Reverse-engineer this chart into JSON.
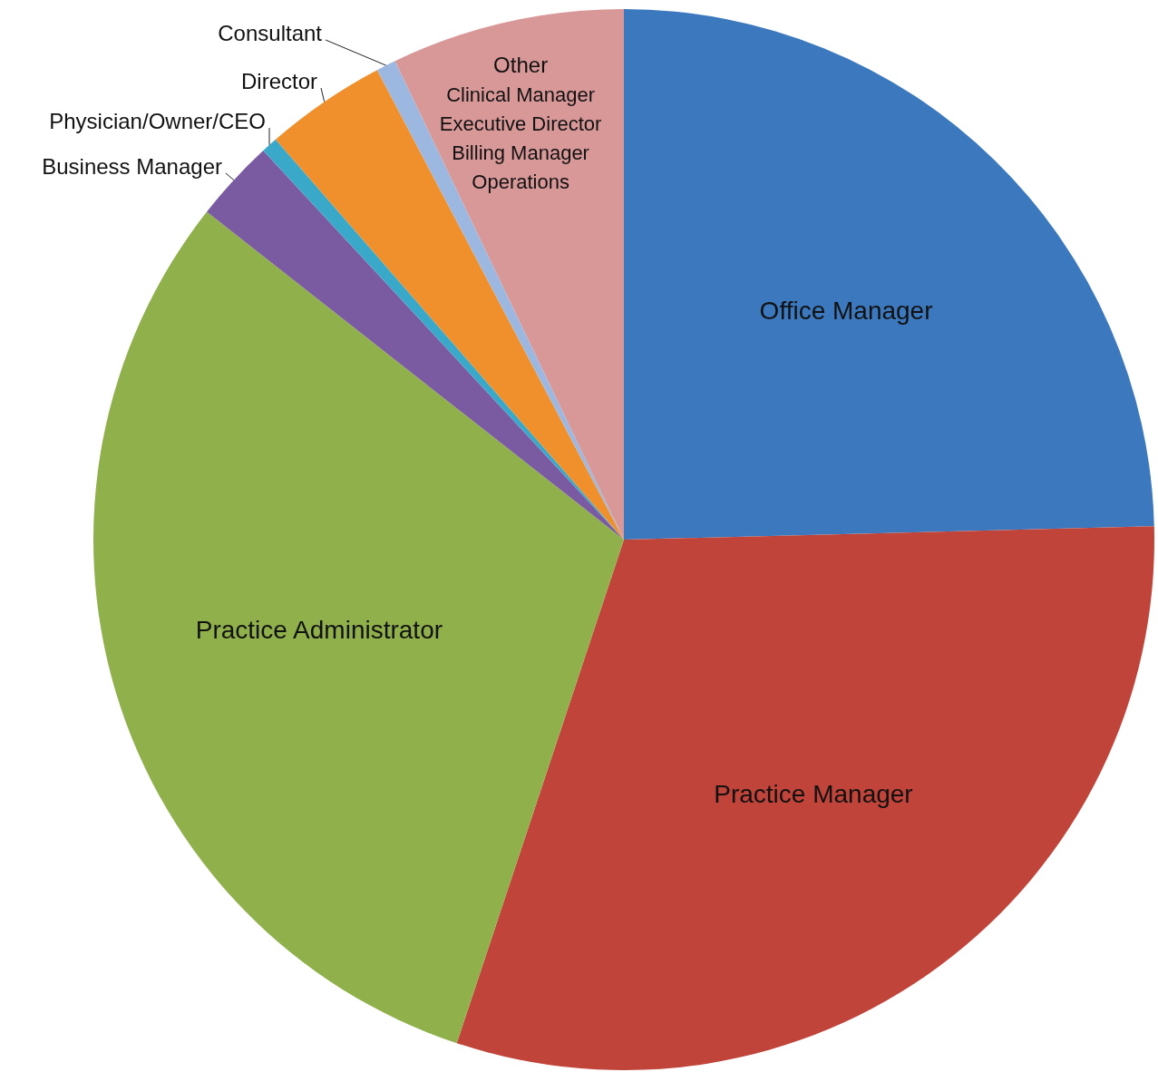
{
  "chart_data": {
    "type": "pie",
    "categories": [
      "Office Manager",
      "Practice Manager",
      "Practice Administrator",
      "Business Manager",
      "Physician/Owner/CEO",
      "Director",
      "Consultant",
      "Other"
    ],
    "values": [
      24.6,
      30.5,
      30.5,
      2.5,
      0.5,
      3.7,
      0.6,
      7.1
    ],
    "colors": [
      "#3b78bd",
      "#c0443a",
      "#8fb04a",
      "#7a5aa0",
      "#3aa8c8",
      "#f0902c",
      "#9db8e0",
      "#d99898"
    ],
    "annotations": [
      "Clinical Manager",
      "Executive Director",
      "Billing Manager",
      "Operations"
    ]
  }
}
